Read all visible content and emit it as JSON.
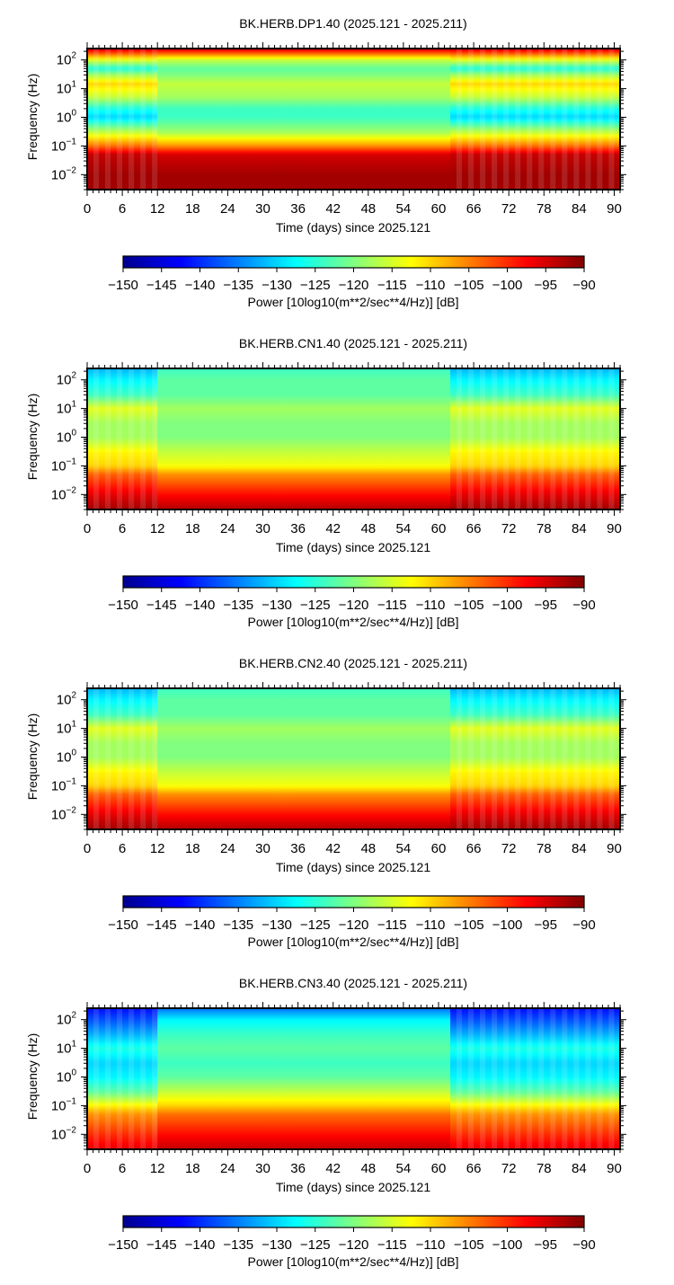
{
  "figure": {
    "common": {
      "ylabel": "Frequency (Hz)",
      "xlabel": "Time (days) since 2025.121",
      "colorbar_label": "Power [10log10(m**2/sec**4/Hz)] [dB]",
      "colorbar_ticks": [
        "−150",
        "−145",
        "−140",
        "−135",
        "−130",
        "−125",
        "−120",
        "−115",
        "−110",
        "−105",
        "−100",
        "−95",
        "−90"
      ],
      "colormap": [
        "#00008f",
        "#0000ff",
        "#0080ff",
        "#00ffff",
        "#80ff80",
        "#ffff00",
        "#ff8000",
        "#ff0000",
        "#800000"
      ],
      "x_ticks": [
        "0",
        "6",
        "12",
        "18",
        "24",
        "30",
        "36",
        "42",
        "48",
        "54",
        "60",
        "66",
        "72",
        "78",
        "84",
        "90"
      ],
      "y_ticks": [
        {
          "base": "10",
          "exp": "2"
        },
        {
          "base": "10",
          "exp": "1"
        },
        {
          "base": "10",
          "exp": "0"
        },
        {
          "base": "10",
          "exp": "−1"
        },
        {
          "base": "10",
          "exp": "−2"
        }
      ]
    },
    "panels": [
      {
        "title": "BK.HERB.DP1.40 (2025.121 - 2025.211)"
      },
      {
        "title": "BK.HERB.CN1.40 (2025.121 - 2025.211)"
      },
      {
        "title": "BK.HERB.CN2.40 (2025.121 - 2025.211)"
      },
      {
        "title": "BK.HERB.CN3.40 (2025.121 - 2025.211)"
      }
    ]
  },
  "chart_data": [
    {
      "type": "heatmap",
      "title": "BK.HERB.DP1.40 (2025.121 - 2025.211)",
      "xlabel": "Time (days) since 2025.121",
      "ylabel": "Frequency (Hz)",
      "xlim": [
        0,
        91
      ],
      "ylim": [
        0.003,
        250
      ],
      "yscale": "log",
      "colorbar": {
        "label": "Power [10log10(m**2/sec**4/Hz)] [dB]",
        "range": [
          -150,
          -90
        ]
      },
      "quiet_interval_days": [
        12,
        62
      ],
      "profile": {
        "freq_hz": [
          0.003,
          0.01,
          0.05,
          0.1,
          0.3,
          1,
          2,
          5,
          15,
          30,
          50,
          100,
          250
        ],
        "noisy_db": [
          -92,
          -92,
          -94,
          -104,
          -116,
          -130,
          -126,
          -116,
          -110,
          -118,
          -126,
          -114,
          -94
        ],
        "quiet_db": [
          -92,
          -92,
          -95,
          -106,
          -118,
          -124,
          -124,
          -118,
          -116,
          -120,
          -122,
          -116,
          -94
        ]
      }
    },
    {
      "type": "heatmap",
      "title": "BK.HERB.CN1.40 (2025.121 - 2025.211)",
      "xlabel": "Time (days) since 2025.121",
      "ylabel": "Frequency (Hz)",
      "xlim": [
        0,
        91
      ],
      "ylim": [
        0.003,
        250
      ],
      "yscale": "log",
      "colorbar": {
        "label": "Power [10log10(m**2/sec**4/Hz)] [dB]",
        "range": [
          -150,
          -90
        ]
      },
      "quiet_interval_days": [
        12,
        62
      ],
      "profile": {
        "freq_hz": [
          0.003,
          0.01,
          0.05,
          0.1,
          0.3,
          1,
          3,
          10,
          30,
          100,
          250
        ],
        "noisy_db": [
          -92,
          -96,
          -103,
          -110,
          -112,
          -118,
          -118,
          -114,
          -124,
          -128,
          -132
        ],
        "quiet_db": [
          -93,
          -98,
          -106,
          -113,
          -116,
          -120,
          -120,
          -118,
          -122,
          -122,
          -124
        ]
      }
    },
    {
      "type": "heatmap",
      "title": "BK.HERB.CN2.40 (2025.121 - 2025.211)",
      "xlabel": "Time (days) since 2025.121",
      "ylabel": "Frequency (Hz)",
      "xlim": [
        0,
        91
      ],
      "ylim": [
        0.003,
        250
      ],
      "yscale": "log",
      "colorbar": {
        "label": "Power [10log10(m**2/sec**4/Hz)] [dB]",
        "range": [
          -150,
          -90
        ]
      },
      "quiet_interval_days": [
        12,
        62
      ],
      "profile": {
        "freq_hz": [
          0.003,
          0.01,
          0.05,
          0.1,
          0.3,
          1,
          3,
          10,
          30,
          100,
          250
        ],
        "noisy_db": [
          -92,
          -96,
          -103,
          -110,
          -112,
          -118,
          -118,
          -114,
          -124,
          -128,
          -132
        ],
        "quiet_db": [
          -93,
          -98,
          -106,
          -113,
          -116,
          -120,
          -120,
          -118,
          -122,
          -122,
          -124
        ]
      }
    },
    {
      "type": "heatmap",
      "title": "BK.HERB.CN3.40 (2025.121 - 2025.211)",
      "xlabel": "Time (days) since 2025.121",
      "ylabel": "Frequency (Hz)",
      "xlim": [
        0,
        91
      ],
      "ylim": [
        0.003,
        250
      ],
      "yscale": "log",
      "colorbar": {
        "label": "Power [10log10(m**2/sec**4/Hz)] [dB]",
        "range": [
          -150,
          -90
        ]
      },
      "quiet_interval_days": [
        12,
        62
      ],
      "profile": {
        "freq_hz": [
          0.003,
          0.01,
          0.05,
          0.1,
          0.3,
          1,
          3,
          10,
          30,
          100,
          250
        ],
        "noisy_db": [
          -96,
          -100,
          -106,
          -112,
          -122,
          -128,
          -130,
          -126,
          -132,
          -138,
          -142
        ],
        "quiet_db": [
          -94,
          -98,
          -104,
          -110,
          -116,
          -122,
          -124,
          -122,
          -124,
          -128,
          -136
        ]
      }
    }
  ]
}
